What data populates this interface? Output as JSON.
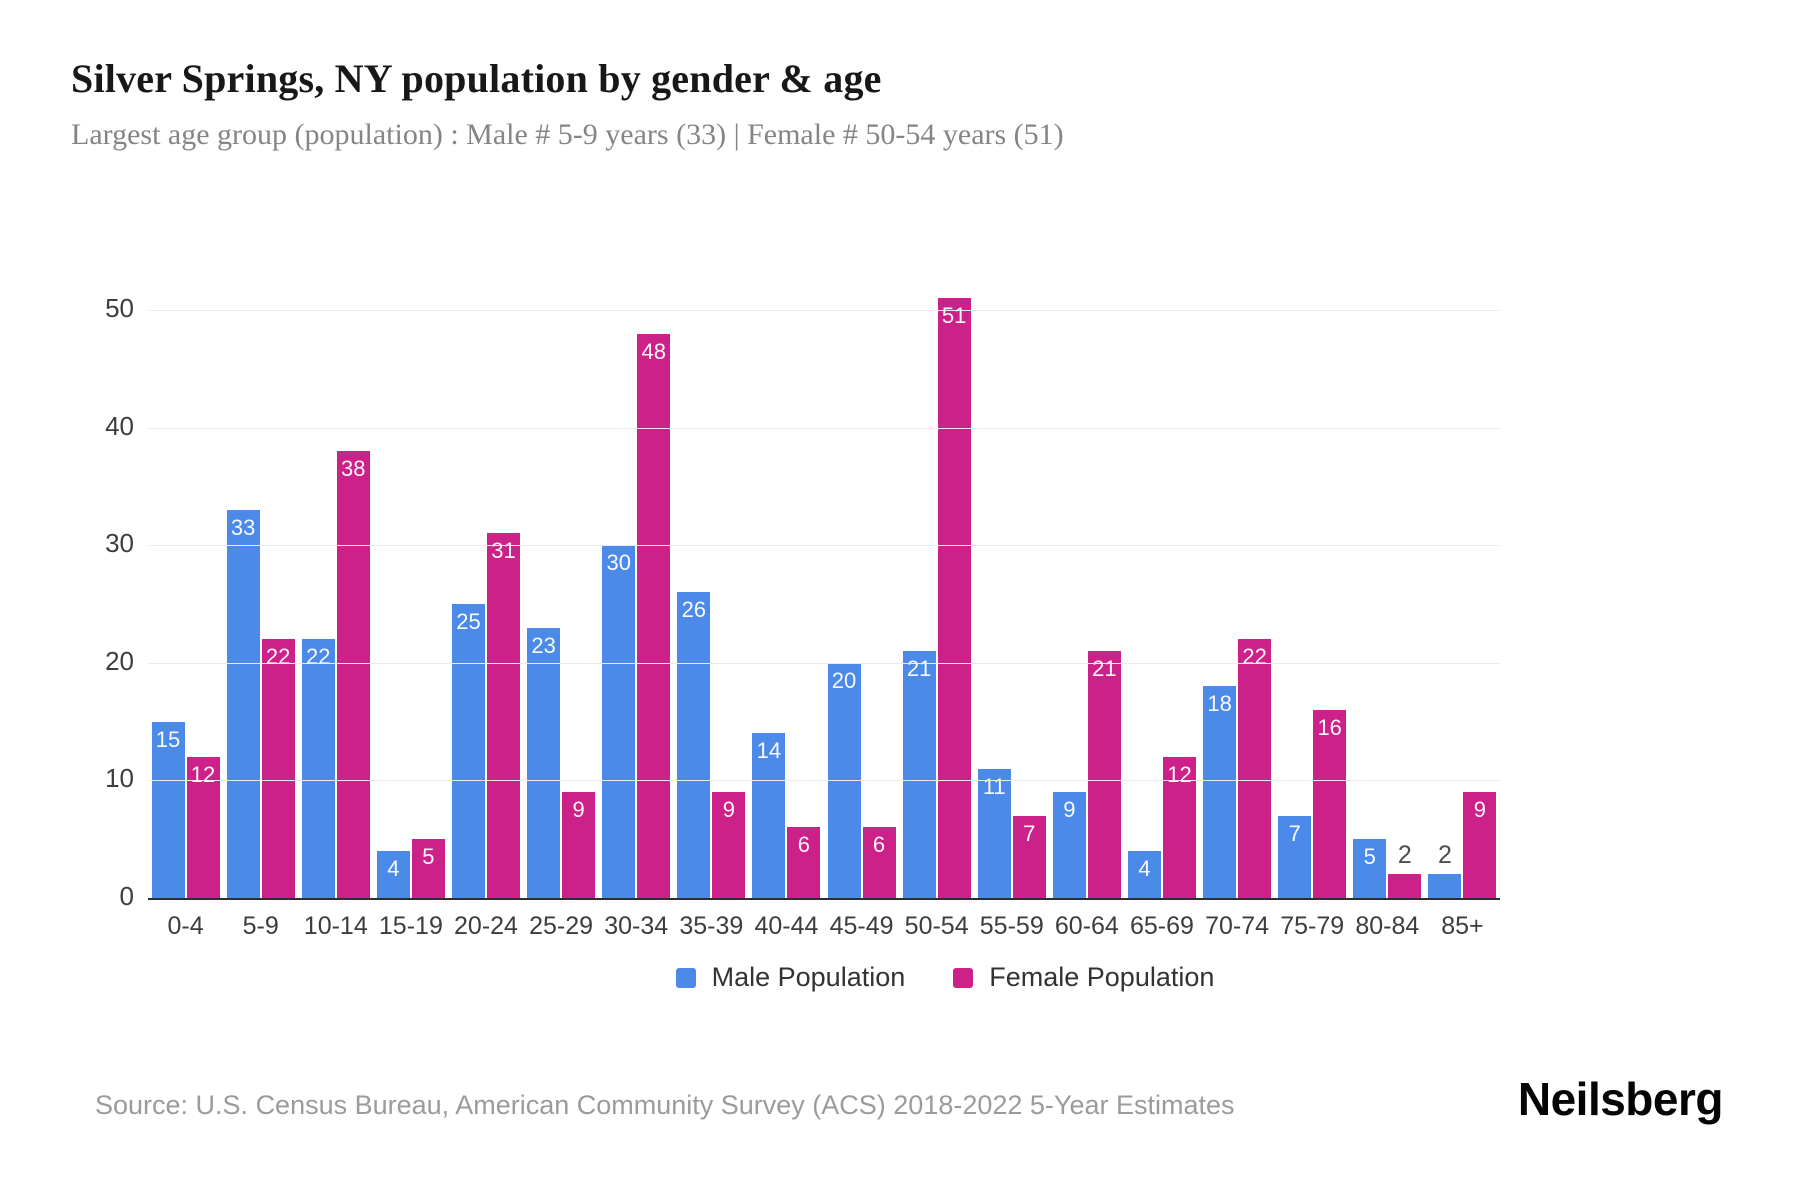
{
  "header": {
    "title": "Silver Springs, NY population by gender & age",
    "subtitle": "Largest age group (population) : Male # 5-9 years (33) | Female # 50-54 years (51)"
  },
  "chart_data": {
    "type": "bar",
    "title": "Silver Springs, NY population by gender & age",
    "xlabel": "",
    "ylabel": "",
    "categories": [
      "0-4",
      "5-9",
      "10-14",
      "15-19",
      "20-24",
      "25-29",
      "30-34",
      "35-39",
      "40-44",
      "45-49",
      "50-54",
      "55-59",
      "60-64",
      "65-69",
      "70-74",
      "75-79",
      "80-84",
      "85+"
    ],
    "series": [
      {
        "name": "Male Population",
        "color": "#4b8ae9",
        "values": [
          15,
          33,
          22,
          4,
          25,
          23,
          30,
          26,
          14,
          20,
          21,
          11,
          9,
          4,
          18,
          7,
          5,
          2
        ]
      },
      {
        "name": "Female Population",
        "color": "#cb2189",
        "values": [
          12,
          22,
          38,
          5,
          31,
          9,
          48,
          9,
          6,
          6,
          51,
          7,
          21,
          12,
          22,
          16,
          2,
          9
        ]
      }
    ],
    "ylim": [
      0,
      50
    ],
    "yticks": [
      0,
      10,
      20,
      30,
      40,
      50
    ],
    "grid": true,
    "legend_position": "bottom",
    "bar_label_inside_min": 4,
    "bar_label_inside_color": "#ffffff",
    "bar_label_outside_color": "#4d4d4d"
  },
  "footer": {
    "source": "Source: U.S. Census Bureau, American Community Survey (ACS) 2018-2022 5-Year Estimates",
    "logo": "Neilsberg"
  }
}
